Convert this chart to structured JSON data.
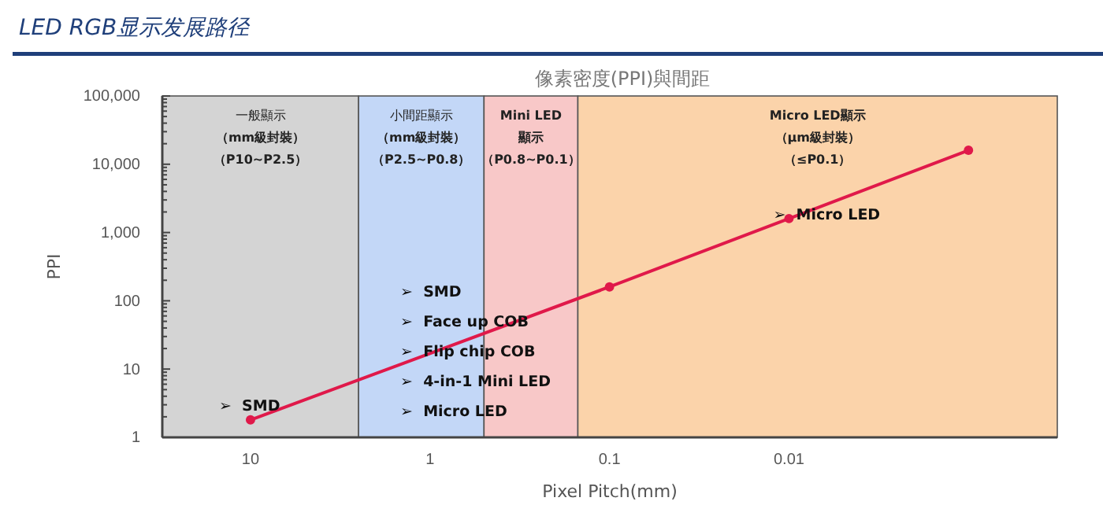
{
  "chart_data": {
    "type": "line",
    "title": "LED RGB显示发展路径",
    "subtitle": "像素密度(PPI)與間距",
    "xlabel": "Pixel Pitch(mm)",
    "ylabel": "PPI",
    "x": [
      10,
      0.1,
      0.01,
      0.001
    ],
    "series": [
      {
        "color": "#e0194a",
        "values": [
          1.8,
          160,
          1600,
          16000
        ]
      }
    ],
    "log": "xy",
    "marker": "circle",
    "line_style": "solid",
    "grid": false,
    "xlim": [
      31,
      0.00032
    ],
    "xticks": [
      10,
      1,
      0.1,
      0.01
    ],
    "ylim": [
      1,
      100000
    ],
    "yticks": [
      {
        "value": 1,
        "label": "1"
      },
      {
        "value": 2,
        "label": null
      },
      {
        "value": 3,
        "label": null
      },
      {
        "value": 4,
        "label": null
      },
      {
        "value": 5,
        "label": null
      },
      {
        "value": 6,
        "label": null
      },
      {
        "value": 7,
        "label": null
      },
      {
        "value": 8,
        "label": null
      },
      {
        "value": 9,
        "label": null
      },
      {
        "value": 10,
        "label": "10"
      },
      {
        "value": 20,
        "label": null
      },
      {
        "value": 30,
        "label": null
      },
      {
        "value": 40,
        "label": null
      },
      {
        "value": 50,
        "label": null
      },
      {
        "value": 60,
        "label": null
      },
      {
        "value": 70,
        "label": null
      },
      {
        "value": 80,
        "label": null
      },
      {
        "value": 90,
        "label": null
      },
      {
        "value": 100,
        "label": "100"
      },
      {
        "value": 200,
        "label": null
      },
      {
        "value": 300,
        "label": null
      },
      {
        "value": 400,
        "label": null
      },
      {
        "value": 500,
        "label": null
      },
      {
        "value": 600,
        "label": null
      },
      {
        "value": 700,
        "label": null
      },
      {
        "value": 800,
        "label": null
      },
      {
        "value": 900,
        "label": null
      },
      {
        "value": 1000,
        "label": "1,000"
      },
      {
        "value": 2000,
        "label": null
      },
      {
        "value": 3000,
        "label": null
      },
      {
        "value": 4000,
        "label": null
      },
      {
        "value": 5000,
        "label": null
      },
      {
        "value": 6000,
        "label": null
      },
      {
        "value": 7000,
        "label": null
      },
      {
        "value": 8000,
        "label": null
      },
      {
        "value": 9000,
        "label": null
      },
      {
        "value": 10000,
        "label": "10,000"
      },
      {
        "value": 20000,
        "label": null
      },
      {
        "value": 30000,
        "label": null
      },
      {
        "value": 40000,
        "label": null
      },
      {
        "value": 50000,
        "label": null
      },
      {
        "value": 60000,
        "label": null
      },
      {
        "value": 70000,
        "label": null
      },
      {
        "value": 80000,
        "label": null
      },
      {
        "value": 90000,
        "label": null
      },
      {
        "value": 100000,
        "label": "100,000"
      }
    ],
    "bands": [
      {
        "axis": "x",
        "from": 31,
        "to": 2.5,
        "label": "一般顯示（mm級封裝）（P10~P2.5）",
        "color": "#d4d4d4"
      },
      {
        "axis": "x",
        "from": 2.5,
        "to": 0.5,
        "label": "小間距顯示（mm級封裝）（P2.5~P0.8）",
        "color": "#c3d7f7"
      },
      {
        "axis": "x",
        "from": 0.5,
        "to": 0.15,
        "label": "Mini LED顯示（P0.8~P0.1）",
        "color": "#f8c8c8"
      },
      {
        "axis": "x",
        "from": 0.15,
        "to": 0.00032,
        "label": "Micro LED顯示（μm級封裝）（≤P0.1）",
        "color": "#fbd3aa"
      }
    ],
    "annotations": [
      "➢  SMD",
      "➢  SMD",
      "➢  Face up COB",
      "➢  Flip chip COB",
      "➢  4-in-1 Mini LED",
      "➢  Micro LED",
      "➢  Micro LED"
    ]
  }
}
